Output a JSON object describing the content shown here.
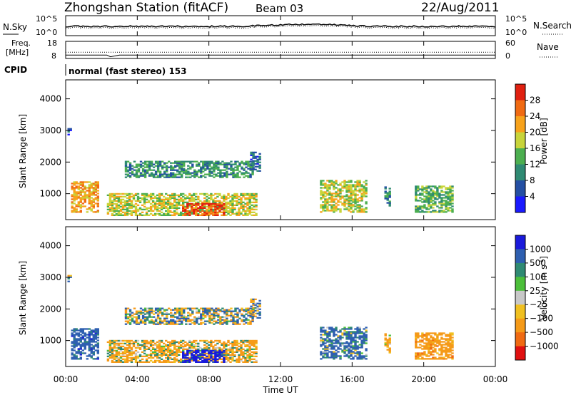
{
  "header": {
    "title": "Zhongshan Station (fitACF)",
    "beam": "Beam 03",
    "date": "22/Aug/2011"
  },
  "sky_panel": {
    "left_label": "N.Sky",
    "right_label": "N.Search",
    "left_ticks": [
      "10^5",
      "10^0"
    ],
    "right_ticks": [
      "10^5",
      "10^0"
    ]
  },
  "freq_panel": {
    "left_label_top": "Freq.",
    "left_label_bottom": "[MHz]",
    "right_label": "Nave",
    "left_ticks": [
      "18",
      "8"
    ],
    "right_ticks": [
      "60",
      "0"
    ]
  },
  "cpid": {
    "label": "CPID",
    "value": "normal (fast stereo) 153"
  },
  "x_axis": {
    "label": "Time UT",
    "ticks": [
      "00:00",
      "04:00",
      "08:00",
      "12:00",
      "16:00",
      "20:00",
      "00:00"
    ]
  },
  "power_panel": {
    "ylabel": "Slant Range [km]",
    "yticks": [
      "1000",
      "2000",
      "3000",
      "4000"
    ],
    "colorbar_label": "Power [dB]",
    "colorbar_ticks": [
      "4",
      "8",
      "12",
      "16",
      "20",
      "24",
      "28"
    ]
  },
  "velocity_panel": {
    "ylabel": "Slant Range [km]",
    "yticks": [
      "1000",
      "2000",
      "3000",
      "4000"
    ],
    "colorbar_label": "Velocity [m s",
    "colorbar_label_sup": "-1",
    "colorbar_label_end": "]",
    "colorbar_ticks": [
      "1000",
      "500",
      "100",
      "25",
      "−25",
      "−100",
      "−500",
      "−1000"
    ]
  },
  "colors": {
    "power_scale": [
      "#1a1aff",
      "#244fa3",
      "#2f8a73",
      "#4caf50",
      "#c8d43a",
      "#f7a21b",
      "#f06a12",
      "#e02010"
    ],
    "velocity_scale": [
      "#1a1adb",
      "#2e5fb0",
      "#2f8a73",
      "#4cbf3a",
      "#c8c8c8",
      "#f0c020",
      "#f59a18",
      "#f06a12",
      "#e01010"
    ]
  },
  "chart_data": {
    "type": "heatmap",
    "x_range_hours": [
      0,
      24
    ],
    "y_range_km": [
      180,
      4600
    ],
    "power_colorbar_range_db": [
      0,
      32
    ],
    "velocity_colorbar_levels": [
      1000,
      500,
      100,
      25,
      -25,
      -100,
      -500,
      -1000
    ],
    "echo_regions": [
      {
        "t_start": 0.3,
        "t_end": 1.8,
        "r_start": 400,
        "r_end": 1350,
        "power_db": 22,
        "velocity": 300
      },
      {
        "t_start": 0.1,
        "t_end": 0.3,
        "r_start": 2850,
        "r_end": 3050,
        "power_db": 6,
        "velocity": 20
      },
      {
        "t_start": 3.3,
        "t_end": 10.4,
        "r_start": 1500,
        "r_end": 2000,
        "power_db": 11,
        "velocity": 10
      },
      {
        "t_start": 10.3,
        "t_end": 10.8,
        "r_start": 1700,
        "r_end": 2300,
        "power_db": 7,
        "velocity": 0
      },
      {
        "t_start": 2.3,
        "t_end": 10.6,
        "r_start": 300,
        "r_end": 1000,
        "power_db": 18,
        "velocity": -150
      },
      {
        "t_start": 6.5,
        "t_end": 8.8,
        "r_start": 300,
        "r_end": 700,
        "power_db": 28,
        "velocity": 700
      },
      {
        "t_start": 14.2,
        "t_end": 16.8,
        "r_start": 400,
        "r_end": 1400,
        "power_db": 18,
        "velocity": 200
      },
      {
        "t_start": 17.8,
        "t_end": 18.1,
        "r_start": 600,
        "r_end": 1200,
        "power_db": 10,
        "velocity": -200
      },
      {
        "t_start": 19.5,
        "t_end": 21.6,
        "r_start": 400,
        "r_end": 1250,
        "power_db": 14,
        "velocity": -300
      }
    ],
    "sky_noise_line": {
      "times": [
        0,
        10,
        12,
        14,
        16,
        20,
        24
      ],
      "value": "10^3"
    },
    "frequency_mhz": {
      "times": [
        0,
        2.3,
        2.5,
        3.0,
        24
      ],
      "values": [
        10,
        10,
        9,
        10,
        10
      ]
    },
    "nave": {
      "times": [
        0,
        24
      ],
      "values": [
        22,
        22
      ]
    }
  }
}
